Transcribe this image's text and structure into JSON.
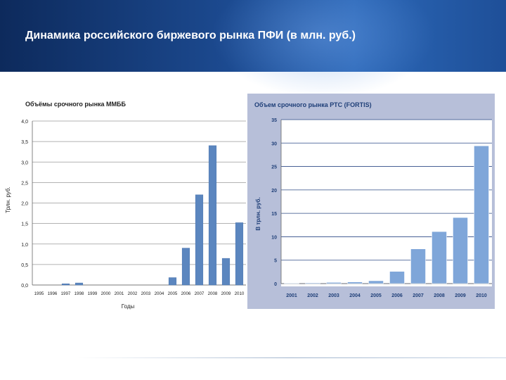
{
  "slide": {
    "title": "Динамика российского биржевого рынка ПФИ (в млн. руб.)"
  },
  "colors": {
    "header": "#1c4a90",
    "bar": "#5b86bf",
    "right_panel_bg": "#b7bfd9",
    "title_text": "#1f3f78"
  },
  "chart_data": [
    {
      "type": "bar",
      "title": "Объёмы срочного рынка ММББ",
      "xlabel": "Годы",
      "ylabel": "Трлн. руб.",
      "categories": [
        "1995",
        "1996",
        "1997",
        "1998",
        "1999",
        "2000",
        "2001",
        "2002",
        "2003",
        "2004",
        "2005",
        "2006",
        "2007",
        "2008",
        "2009",
        "2010"
      ],
      "values": [
        0,
        0,
        0.03,
        0.05,
        0,
        0,
        0,
        0,
        0,
        0,
        0.18,
        0.9,
        2.2,
        3.4,
        0.65,
        1.52
      ],
      "y_ticks": [
        "0,0",
        "0,5",
        "1,0",
        "1,5",
        "2,0",
        "2,5",
        "3,0",
        "3,5",
        "4,0"
      ],
      "ylim": [
        0,
        4
      ],
      "grid": true
    },
    {
      "type": "bar",
      "title": "Объем срочного рынка РТС (FORTIS)",
      "xlabel": "",
      "ylabel": "В трлн. руб.",
      "categories": [
        "2001",
        "2002",
        "2003",
        "2004",
        "2005",
        "2006",
        "2007",
        "2008",
        "2009",
        "2010"
      ],
      "values": [
        0.1,
        0.15,
        0.25,
        0.35,
        0.6,
        2.6,
        7.4,
        11.1,
        14.1,
        29.4
      ],
      "y_ticks": [
        "0",
        "5",
        "10",
        "15",
        "20",
        "25",
        "30",
        "35"
      ],
      "ylim": [
        0,
        35
      ],
      "grid": true
    }
  ]
}
